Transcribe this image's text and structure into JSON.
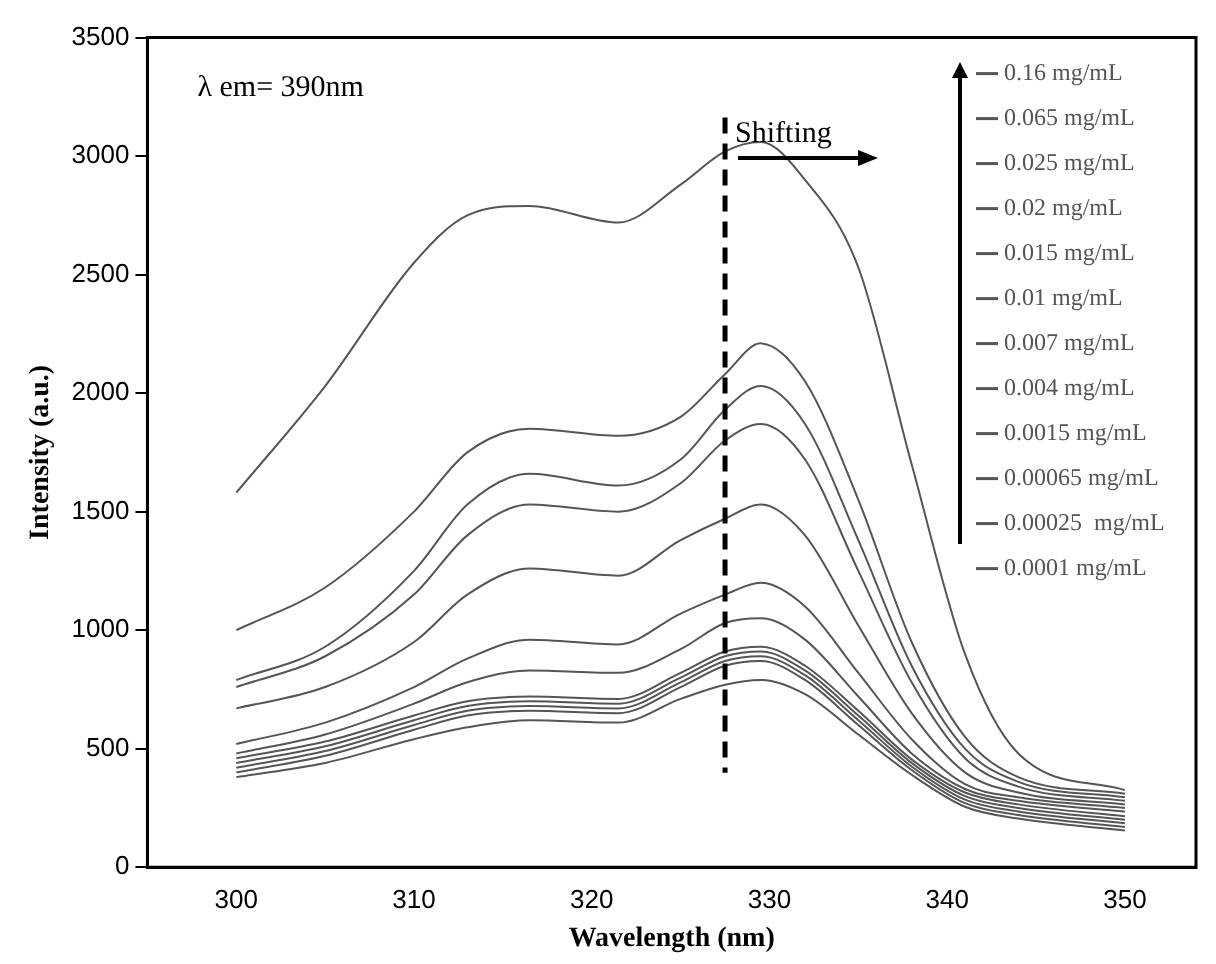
{
  "chart_data": {
    "type": "line",
    "xlabel": "Wavelength (nm)",
    "ylabel": "Intensity (a.u.)",
    "x": [
      300,
      305,
      310,
      313,
      316.5,
      321.5,
      325,
      327.5,
      329.5,
      332,
      335,
      338,
      341,
      344,
      350
    ],
    "xlim": [
      295,
      354
    ],
    "xticks": [
      300,
      310,
      320,
      330,
      340,
      350
    ],
    "ylim": [
      0,
      3500
    ],
    "yticks": [
      0,
      500,
      1000,
      1500,
      2000,
      2500,
      3000,
      3500
    ],
    "grid": false,
    "legend": "top right",
    "marker": "none",
    "line_style": "solid",
    "series": [
      {
        "name": "0.16 mg/mL",
        "color": "#555555",
        "values": [
          1580,
          2030,
          2550,
          2750,
          2790,
          2720,
          2880,
          3020,
          3060,
          2900,
          2530,
          1700,
          900,
          480,
          325
        ]
      },
      {
        "name": "0.065 mg/mL",
        "color": "#555555",
        "values": [
          1000,
          1180,
          1500,
          1750,
          1850,
          1820,
          1900,
          2080,
          2210,
          2050,
          1550,
          950,
          550,
          380,
          310
        ]
      },
      {
        "name": "0.025 mg/mL",
        "color": "#555555",
        "values": [
          790,
          930,
          1250,
          1530,
          1660,
          1610,
          1720,
          1930,
          2030,
          1870,
          1380,
          850,
          500,
          360,
          295
        ]
      },
      {
        "name": "0.02 mg/mL",
        "color": "#555555",
        "values": [
          760,
          890,
          1150,
          1400,
          1530,
          1500,
          1620,
          1800,
          1870,
          1720,
          1250,
          780,
          460,
          340,
          280
        ]
      },
      {
        "name": "0.015 mg/mL",
        "color": "#555555",
        "values": [
          670,
          760,
          950,
          1150,
          1260,
          1230,
          1380,
          1470,
          1530,
          1400,
          1020,
          650,
          400,
          315,
          265
        ]
      },
      {
        "name": "0.01 mg/mL",
        "color": "#555555",
        "values": [
          520,
          610,
          760,
          880,
          960,
          940,
          1070,
          1150,
          1200,
          1100,
          820,
          540,
          350,
          295,
          250
        ]
      },
      {
        "name": "0.007 mg/mL",
        "color": "#555555",
        "values": [
          480,
          560,
          690,
          780,
          830,
          820,
          920,
          1030,
          1050,
          960,
          720,
          480,
          330,
          280,
          235
        ]
      },
      {
        "name": "0.004 mg/mL",
        "color": "#555555",
        "values": [
          460,
          530,
          640,
          700,
          720,
          710,
          820,
          910,
          930,
          850,
          660,
          455,
          315,
          265,
          215
        ]
      },
      {
        "name": "0.0015 mg/mL",
        "color": "#555555",
        "values": [
          440,
          510,
          620,
          680,
          700,
          690,
          800,
          890,
          910,
          830,
          640,
          440,
          300,
          250,
          200
        ]
      },
      {
        "name": "0.00065 mg/mL",
        "color": "#555555",
        "values": [
          420,
          490,
          600,
          660,
          680,
          670,
          780,
          870,
          890,
          810,
          620,
          425,
          285,
          235,
          185
        ]
      },
      {
        "name": "0.00025  mg/mL",
        "color": "#555555",
        "values": [
          400,
          470,
          580,
          640,
          660,
          650,
          760,
          850,
          870,
          790,
          600,
          410,
          270,
          220,
          170
        ]
      },
      {
        "name": "0.0001 mg/mL",
        "color": "#555555",
        "values": [
          380,
          440,
          540,
          590,
          620,
          610,
          710,
          770,
          790,
          730,
          560,
          390,
          255,
          205,
          155
        ]
      }
    ],
    "ref_lines": [
      {
        "axis": "x",
        "value": 327.5,
        "label": "Shifting",
        "color": "#000000",
        "line_style": "dashed"
      }
    ],
    "annotations": [
      "λ em= 390nm"
    ]
  }
}
